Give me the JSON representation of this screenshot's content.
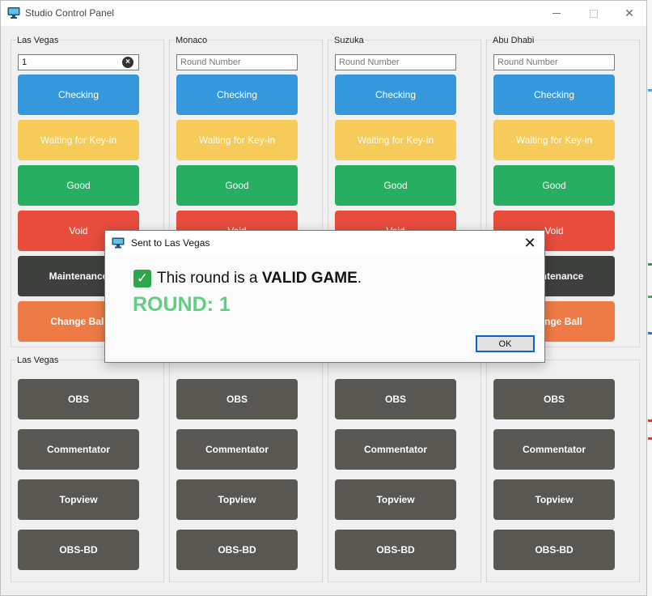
{
  "window": {
    "title": "Studio Control Panel"
  },
  "studios": [
    {
      "name": "Las Vegas",
      "round_value": "1",
      "placeholder": "Round Number"
    },
    {
      "name": "Monaco",
      "round_value": "",
      "placeholder": "Round Number"
    },
    {
      "name": "Suzuka",
      "round_value": "",
      "placeholder": "Round Number"
    },
    {
      "name": "Abu Dhabi",
      "round_value": "",
      "placeholder": "Round Number"
    }
  ],
  "status_buttons": {
    "checking": "Checking",
    "waiting": "Waiting for Key-in",
    "good": "Good",
    "void": "Void",
    "maintenance": "Maintenance",
    "change_ball": "Change Ball"
  },
  "camera_buttons": {
    "obs": "OBS",
    "commentator": "Commentator",
    "topview": "Topview",
    "obs_bd": "OBS-BD"
  },
  "dialog": {
    "title": "Sent to Las Vegas",
    "message_prefix": "This round is a ",
    "message_strong": "VALID GAME",
    "message_suffix": ".",
    "round_line": "ROUND: 1",
    "ok_label": "OK"
  },
  "colors": {
    "checking": "#3598dc",
    "waiting": "#f7cb5a",
    "good": "#27ae60",
    "void": "#e74c3c",
    "maintenance": "#3e403d",
    "change_ball": "#ee7b46",
    "camera": "#595751",
    "round_text": "#5fcf80"
  },
  "icons": {
    "app": "monitor-icon",
    "clear": "clear-circle-x-icon",
    "dialog_check": "check-mark-icon"
  }
}
